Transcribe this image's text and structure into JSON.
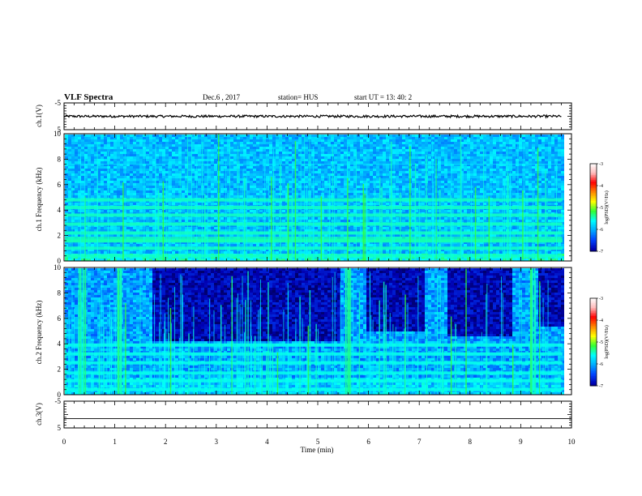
{
  "header": {
    "title": "VLF Spectra",
    "date": "Dec.6 , 2017",
    "station": "station= HUS",
    "start": "start UT = 13: 40: 2"
  },
  "chart_data": [
    {
      "id": "ch1v",
      "type": "line",
      "ylabel": "ch.1(V)",
      "ylim": [
        -5,
        5
      ],
      "yticks": [
        "5",
        "-5"
      ],
      "xlim": [
        0,
        10
      ],
      "description_level": 0,
      "series": [
        {
          "name": "",
          "values_const": 0,
          "noise": 0.25
        }
      ]
    },
    {
      "id": "ch1spec",
      "type": "heatmap",
      "ylabel": "ch.1 Frequency (kHz)",
      "ylim": [
        0,
        10
      ],
      "yticks": [
        "0",
        "2",
        "4",
        "6",
        "8",
        "10"
      ],
      "xlim": [
        0,
        10
      ],
      "bands_khz": [
        0.4,
        1.0,
        1.6,
        2.2,
        2.9,
        3.6,
        4.2,
        4.8
      ],
      "colorbar": {
        "label": "log(PSD)(V²/Hz)",
        "ticks": [
          "-3",
          "-4",
          "-5",
          "-6",
          "-7"
        ],
        "range": [
          -7,
          -3
        ]
      }
    },
    {
      "id": "ch2spec",
      "type": "heatmap",
      "ylabel": "ch.2 Frequency (kHz)",
      "ylim": [
        0,
        10
      ],
      "yticks": [
        "0",
        "2",
        "4",
        "6",
        "8",
        "10"
      ],
      "xlim": [
        0,
        10
      ],
      "bands_khz": [
        0.4,
        1.1,
        1.7,
        2.5,
        3.2,
        3.9
      ],
      "colorbar": {
        "label": "log(PSD)(V²/Hz)",
        "ticks": [
          "-3",
          "-4",
          "-5",
          "-6",
          "-7"
        ],
        "range": [
          -7,
          -3
        ]
      }
    },
    {
      "id": "ch3v",
      "type": "line",
      "ylabel": "ch.3(V)",
      "ylim": [
        -5,
        5
      ],
      "yticks": [
        "5",
        "-5"
      ],
      "xlim": [
        0,
        10
      ],
      "series": [
        {
          "name": "",
          "values_const": -1.5
        }
      ]
    }
  ],
  "xaxis": {
    "label": "Time (min)",
    "ticks": [
      "0",
      "1",
      "2",
      "3",
      "4",
      "5",
      "6",
      "7",
      "8",
      "9",
      "10"
    ]
  },
  "colors": {
    "cmap": [
      "#000000",
      "#0000b0",
      "#0044ff",
      "#00aaff",
      "#00ffff",
      "#33ff33",
      "#ffff00",
      "#ff8800",
      "#ff0000",
      "#ffbbbb",
      "#ffffff"
    ]
  }
}
